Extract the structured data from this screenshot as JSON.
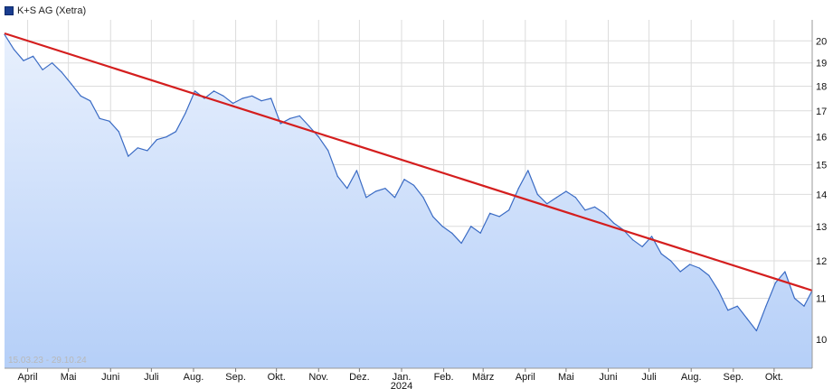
{
  "legend": {
    "label": "K+S AG (Xetra)",
    "swatch_color": "#1a3d8f"
  },
  "range_label": "15.03.23 - 29.10.24",
  "chart_data": {
    "type": "area",
    "title": "",
    "series": [
      {
        "name": "K+S AG (Xetra)",
        "color": "#3a6bc4",
        "fill_top": "#e8f0fd",
        "fill_bottom": "#b5cff8",
        "x": [
          "2023-03-15",
          "2023-03-22",
          "2023-03-29",
          "2023-04-05",
          "2023-04-12",
          "2023-04-19",
          "2023-04-26",
          "2023-05-03",
          "2023-05-10",
          "2023-05-17",
          "2023-05-24",
          "2023-05-31",
          "2023-06-07",
          "2023-06-14",
          "2023-06-21",
          "2023-06-28",
          "2023-07-05",
          "2023-07-12",
          "2023-07-19",
          "2023-07-26",
          "2023-08-02",
          "2023-08-09",
          "2023-08-16",
          "2023-08-23",
          "2023-08-30",
          "2023-09-06",
          "2023-09-13",
          "2023-09-20",
          "2023-09-27",
          "2023-10-04",
          "2023-10-11",
          "2023-10-18",
          "2023-10-25",
          "2023-11-01",
          "2023-11-08",
          "2023-11-15",
          "2023-11-22",
          "2023-11-29",
          "2023-12-06",
          "2023-12-13",
          "2023-12-20",
          "2023-12-27",
          "2024-01-03",
          "2024-01-10",
          "2024-01-17",
          "2024-01-24",
          "2024-01-31",
          "2024-02-07",
          "2024-02-14",
          "2024-02-21",
          "2024-02-28",
          "2024-03-06",
          "2024-03-13",
          "2024-03-20",
          "2024-03-27",
          "2024-04-03",
          "2024-04-10",
          "2024-04-17",
          "2024-04-24",
          "2024-05-01",
          "2024-05-08",
          "2024-05-15",
          "2024-05-22",
          "2024-05-29",
          "2024-06-05",
          "2024-06-12",
          "2024-06-19",
          "2024-06-26",
          "2024-07-03",
          "2024-07-10",
          "2024-07-17",
          "2024-07-24",
          "2024-07-31",
          "2024-08-07",
          "2024-08-14",
          "2024-08-21",
          "2024-08-28",
          "2024-09-04",
          "2024-09-11",
          "2024-09-18",
          "2024-09-25",
          "2024-10-02",
          "2024-10-09",
          "2024-10-16",
          "2024-10-23",
          "2024-10-29"
        ],
        "values": [
          20.3,
          19.6,
          19.1,
          19.3,
          18.7,
          19.0,
          18.6,
          18.1,
          17.6,
          17.4,
          16.7,
          16.6,
          16.2,
          15.3,
          15.6,
          15.5,
          15.9,
          16.0,
          16.2,
          16.9,
          17.8,
          17.5,
          17.8,
          17.6,
          17.3,
          17.5,
          17.6,
          17.4,
          17.5,
          16.5,
          16.7,
          16.8,
          16.4,
          16.0,
          15.5,
          14.6,
          14.2,
          14.8,
          13.9,
          14.1,
          14.2,
          13.9,
          14.5,
          14.3,
          13.9,
          13.3,
          13.0,
          12.8,
          12.5,
          13.0,
          12.8,
          13.4,
          13.3,
          13.5,
          14.2,
          14.8,
          14.0,
          13.7,
          13.9,
          14.1,
          13.9,
          13.5,
          13.6,
          13.4,
          13.1,
          12.9,
          12.6,
          12.4,
          12.7,
          12.2,
          12.0,
          11.7,
          11.9,
          11.8,
          11.6,
          11.2,
          10.7,
          10.8,
          10.5,
          10.2,
          10.8,
          11.4,
          11.7,
          11.0,
          10.8,
          11.2
        ]
      }
    ],
    "trendline": {
      "color": "#d41e1e",
      "from": {
        "x": "2023-03-15",
        "y": 20.35
      },
      "to": {
        "x": "2024-10-29",
        "y": 11.2
      }
    },
    "xaxis": {
      "type": "time",
      "range": [
        "2023-03-15",
        "2024-10-29"
      ],
      "ticks": [
        {
          "date": "2023-04-01",
          "label": "April"
        },
        {
          "date": "2023-05-01",
          "label": "Mai"
        },
        {
          "date": "2023-06-01",
          "label": "Juni"
        },
        {
          "date": "2023-07-01",
          "label": "Juli"
        },
        {
          "date": "2023-08-01",
          "label": "Aug."
        },
        {
          "date": "2023-09-01",
          "label": "Sep."
        },
        {
          "date": "2023-10-01",
          "label": "Okt."
        },
        {
          "date": "2023-11-01",
          "label": "Nov."
        },
        {
          "date": "2023-12-01",
          "label": "Dez."
        },
        {
          "date": "2024-01-01",
          "label": "Jan."
        },
        {
          "date": "2024-02-01",
          "label": "Feb."
        },
        {
          "date": "2024-03-01",
          "label": "März"
        },
        {
          "date": "2024-04-01",
          "label": "April"
        },
        {
          "date": "2024-05-01",
          "label": "Mai"
        },
        {
          "date": "2024-06-01",
          "label": "Juni"
        },
        {
          "date": "2024-07-01",
          "label": "Juli"
        },
        {
          "date": "2024-08-01",
          "label": "Aug."
        },
        {
          "date": "2024-09-01",
          "label": "Sep."
        },
        {
          "date": "2024-10-01",
          "label": "Okt."
        }
      ],
      "year_label": {
        "date": "2024-01-01",
        "label": "2024"
      }
    },
    "yaxis": {
      "scale": "log",
      "range": [
        9.35,
        21.0
      ],
      "ticks": [
        10,
        11,
        12,
        13,
        14,
        15,
        16,
        17,
        18,
        19,
        20
      ],
      "position": "right"
    },
    "grid": true
  }
}
